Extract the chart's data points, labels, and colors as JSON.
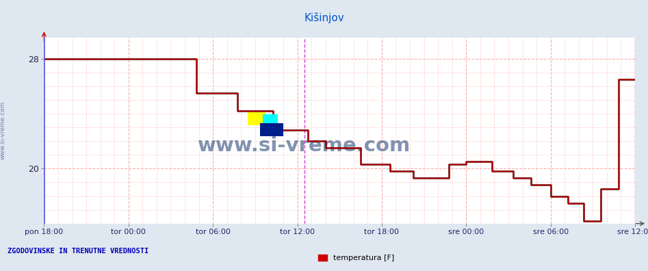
{
  "title": "Kišinjov",
  "title_color": "#0055cc",
  "title_fontsize": 11,
  "background_color": "#dfe8f0",
  "plot_bg_color": "#ffffff",
  "grid_color_major": "#ffaaaa",
  "grid_color_minor": "#ffcccc",
  "ylim": [
    16.0,
    29.5
  ],
  "yticks": [
    20,
    28
  ],
  "xlim_min": 0,
  "xlim_max": 504,
  "xtick_positions": [
    0,
    72,
    144,
    216,
    288,
    360,
    432,
    504
  ],
  "xtick_labels": [
    "pon 18:00",
    "tor 00:00",
    "tor 06:00",
    "tor 12:00",
    "tor 18:00",
    "sre 00:00",
    "sre 06:00",
    "sre 12:00"
  ],
  "current_time_x": 222,
  "magenta_color": "#cc44cc",
  "left_line_color": "#6666dd",
  "line_color": "#cc0000",
  "dark_line_color": "#440000",
  "bottom_left_text": "ZGODOVINSKE IN TRENUTNE VREDNOSTI",
  "legend_label": "temperatura [F]",
  "legend_color": "#cc0000",
  "watermark": "www.si-vreme.com",
  "step_x": [
    0,
    130,
    130,
    165,
    165,
    195,
    195,
    225,
    225,
    240,
    240,
    270,
    270,
    295,
    295,
    315,
    315,
    345,
    345,
    360,
    360,
    382,
    382,
    400,
    400,
    415,
    415,
    432,
    432,
    447,
    447,
    460,
    460,
    475,
    475,
    490,
    490,
    500,
    500,
    504
  ],
  "step_y": [
    28.0,
    28.0,
    25.5,
    25.5,
    24.2,
    24.2,
    22.8,
    22.8,
    22.0,
    22.0,
    21.5,
    21.5,
    20.3,
    20.3,
    19.8,
    19.8,
    19.3,
    19.3,
    20.3,
    20.3,
    20.5,
    20.5,
    19.8,
    19.8,
    19.3,
    19.3,
    18.8,
    18.8,
    18.0,
    18.0,
    17.5,
    17.5,
    16.2,
    16.2,
    18.5,
    18.5,
    26.5,
    26.5,
    26.5,
    26.5
  ]
}
